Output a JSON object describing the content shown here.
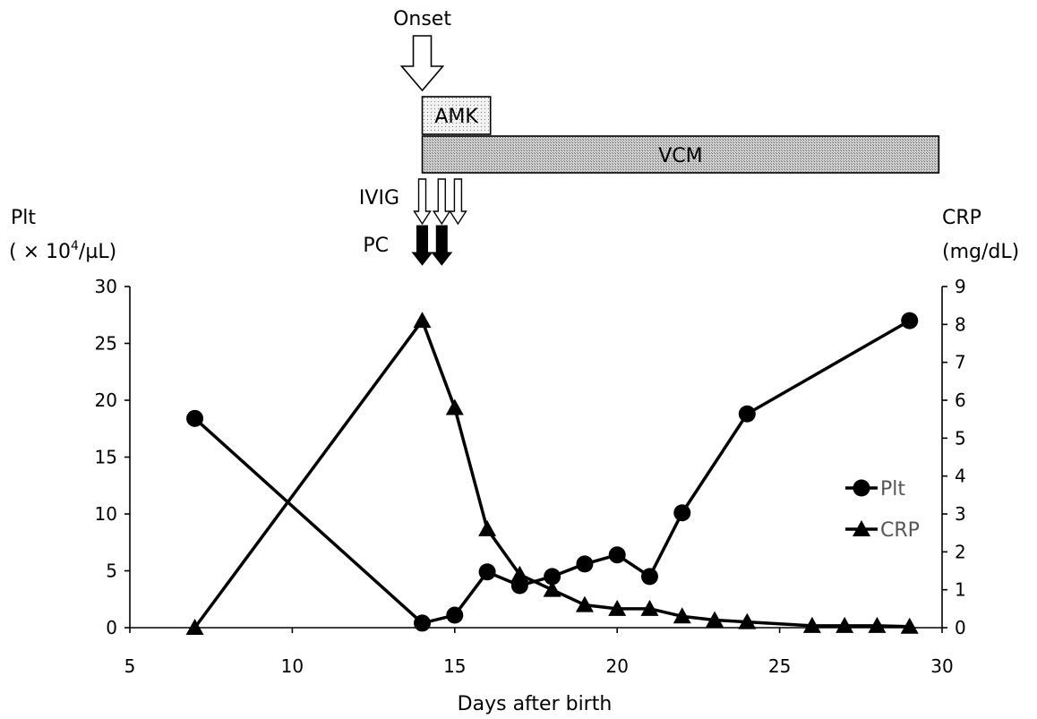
{
  "chart_data": {
    "type": "line",
    "x_axis": {
      "label": "Days after birth",
      "range": [
        5,
        30
      ],
      "ticks": [
        5,
        10,
        15,
        20,
        25,
        30
      ]
    },
    "y_left": {
      "label_line1": "Plt",
      "label_line2_prefix": "( × 10",
      "label_line2_sup": "4",
      "label_line2_suffix": "/µL)",
      "range": [
        0,
        30
      ],
      "ticks": [
        0,
        5,
        10,
        15,
        20,
        25,
        30
      ]
    },
    "y_right": {
      "label_line1": "CRP",
      "label_line2": "(mg/dL)",
      "range": [
        0,
        9
      ],
      "ticks": [
        0,
        1,
        2,
        3,
        4,
        5,
        6,
        7,
        8,
        9
      ]
    },
    "series": [
      {
        "name": "Plt",
        "axis": "left",
        "marker": "circle",
        "x": [
          7,
          14,
          15,
          16,
          17,
          18,
          19,
          20,
          21,
          22,
          24,
          29
        ],
        "y": [
          18.4,
          0.4,
          1.1,
          4.9,
          3.7,
          4.5,
          5.6,
          6.4,
          4.5,
          10.1,
          18.8,
          27.0
        ]
      },
      {
        "name": "CRP",
        "axis": "right",
        "marker": "triangle",
        "x": [
          7,
          14,
          15,
          16,
          17,
          18,
          19,
          20,
          21,
          22,
          23,
          24,
          26,
          27,
          28,
          29
        ],
        "y": [
          0,
          8.1,
          5.8,
          2.6,
          1.4,
          1.0,
          0.6,
          0.5,
          0.5,
          0.3,
          0.2,
          0.15,
          0.05,
          0.05,
          0.05,
          0.03
        ]
      }
    ],
    "legend": {
      "placement": "right",
      "items": [
        "Plt",
        "CRP"
      ]
    },
    "grid": false,
    "annotations": {
      "onset": {
        "label": "Onset",
        "day": 14
      },
      "bars": [
        {
          "label": "AMK",
          "start": 14,
          "end": 16.1
        },
        {
          "label": "VCM",
          "start": 14,
          "end": 29.9
        }
      ],
      "ivig": {
        "label": "IVIG",
        "days": [
          14,
          14.6,
          15.1
        ]
      },
      "pc": {
        "label": "PC",
        "days": [
          14,
          14.6
        ]
      }
    }
  }
}
